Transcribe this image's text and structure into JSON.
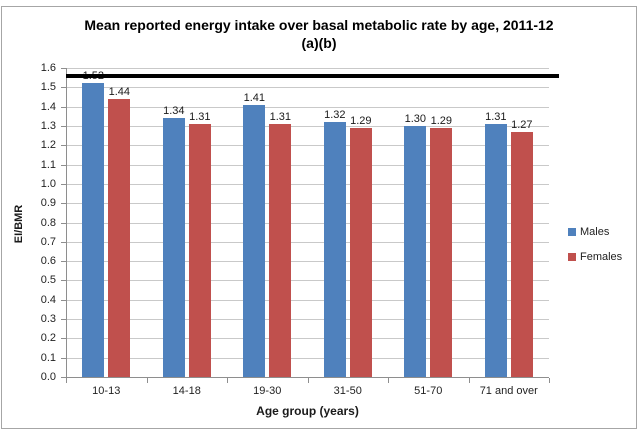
{
  "chart_data": {
    "type": "bar",
    "title_line1": "Mean reported energy intake over basal metabolic rate by age, 2011-12",
    "title_line2": "(a)(b)",
    "xlabel": "Age group (years)",
    "ylabel": "EI/BMR",
    "categories": [
      "10-13",
      "14-18",
      "19-30",
      "31-50",
      "51-70",
      "71 and over"
    ],
    "series": [
      {
        "name": "Males",
        "color": "#4F81BD",
        "values": [
          1.52,
          1.34,
          1.41,
          1.32,
          1.3,
          1.31
        ],
        "labels": [
          "1.52",
          "1.34",
          "1.41",
          "1.32",
          "1.30",
          "1.31"
        ]
      },
      {
        "name": "Females",
        "color": "#C0504D",
        "values": [
          1.44,
          1.31,
          1.31,
          1.29,
          1.29,
          1.27
        ],
        "labels": [
          "1.44",
          "1.31",
          "1.31",
          "1.29",
          "1.29",
          "1.27"
        ]
      }
    ],
    "ylim": [
      0,
      1.6
    ],
    "ytick_step": 0.1,
    "ytick_labels": [
      "0.0",
      "0.1",
      "0.2",
      "0.3",
      "0.4",
      "0.5",
      "0.6",
      "0.7",
      "0.8",
      "0.9",
      "1.0",
      "1.1",
      "1.2",
      "1.3",
      "1.4",
      "1.5",
      "1.6"
    ],
    "reference_line": {
      "value": 1.56,
      "color": "#000000"
    },
    "grid": true,
    "legend_position": "right"
  },
  "colors": {
    "gridline": "#C9C9C9",
    "axis": "#8E8E8E",
    "frame_border": "#A6A6A6",
    "text": "#000000",
    "background": "#FFFFFF"
  }
}
